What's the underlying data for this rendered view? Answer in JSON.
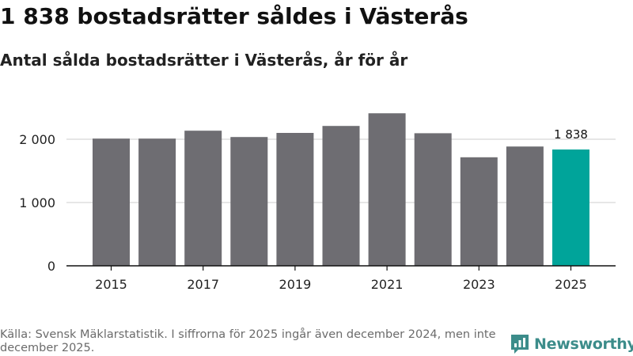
{
  "header": {
    "title": "1 838 bostadsrätter såldes i Västerås",
    "subtitle": "Antal sålda bostadsrätter i Västerås, år för år"
  },
  "chart_data": {
    "type": "bar",
    "title": "1 838 bostadsrätter såldes i Västerås",
    "subtitle": "Antal sålda bostadsrätter i Västerås, år för år",
    "xlabel": "",
    "ylabel": "",
    "categories": [
      "2015",
      "2016",
      "2017",
      "2018",
      "2019",
      "2020",
      "2021",
      "2022",
      "2023",
      "2024",
      "2025"
    ],
    "values": [
      2010,
      2010,
      2135,
      2035,
      2100,
      2210,
      2410,
      2095,
      1715,
      1885,
      1838
    ],
    "ylim": [
      0,
      2500
    ],
    "yticks": [
      0,
      1000,
      2000
    ],
    "ytick_labels": [
      "0",
      "1 000",
      "2 000"
    ],
    "xtick_labels": [
      "2015",
      "2017",
      "2019",
      "2021",
      "2023",
      "2025"
    ],
    "grid": true,
    "highlight_index": 10,
    "annotation": {
      "category": "2025",
      "text": "1 838"
    },
    "colors": {
      "bar": "#6e6d72",
      "highlight": "#00a49a",
      "grid": "#dddddd",
      "axis": "#111111"
    }
  },
  "footer": {
    "source": "Källa: Svensk Mäklarstatistik. I siffrorna för 2025 ingår även december 2024, men inte december 2025."
  },
  "brand": {
    "name": "Newsworthy",
    "color": "#3c8c8a"
  }
}
